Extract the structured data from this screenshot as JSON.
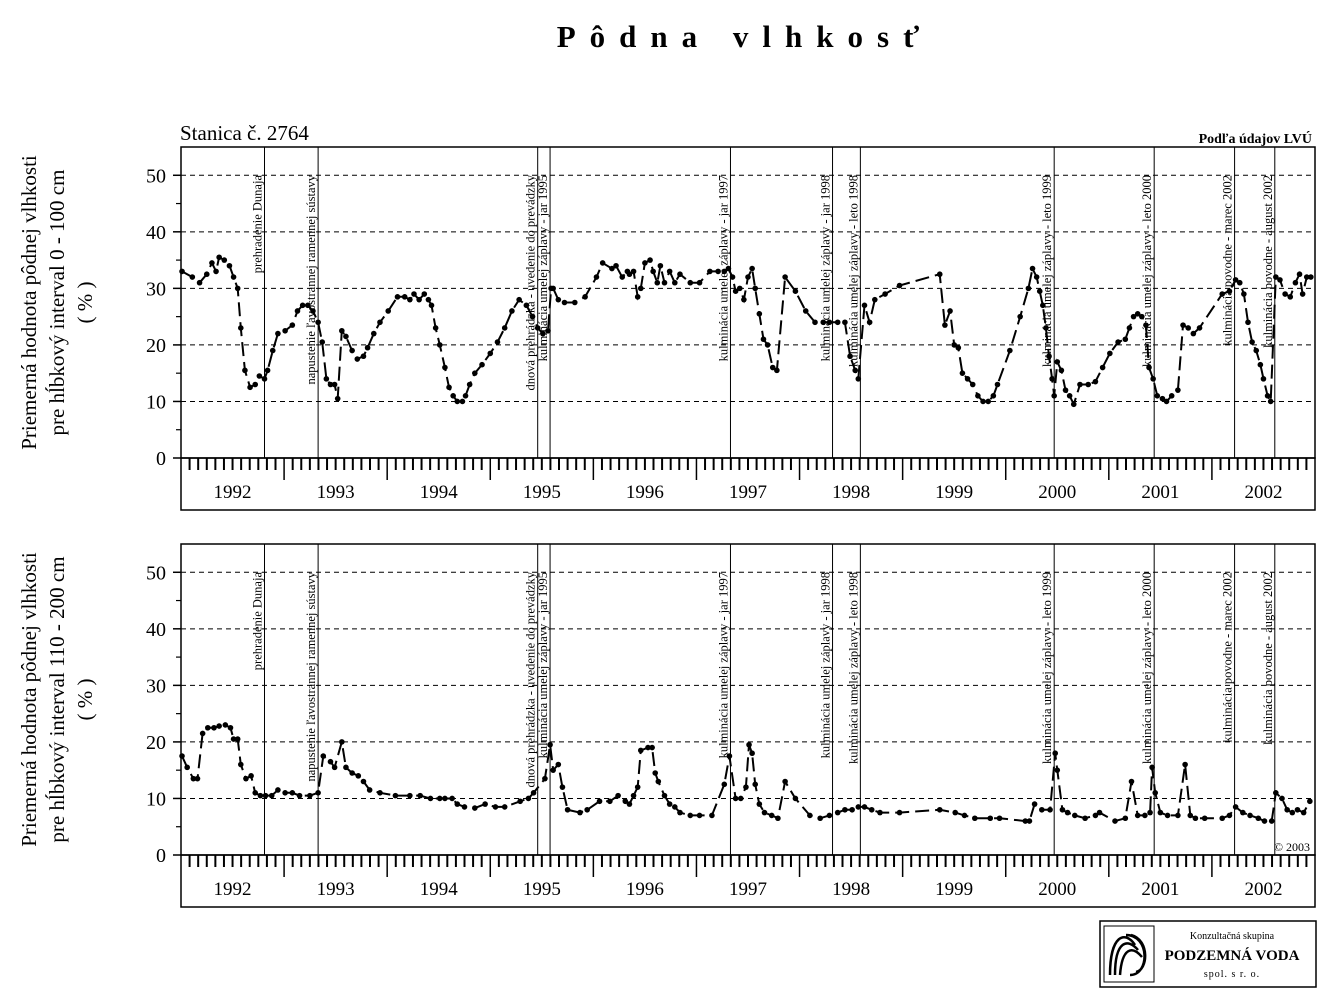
{
  "title": "Pôdna vlhkosť",
  "station": "Stanica č. 2764",
  "source": "Podľa údajov LVÚ",
  "copyright": "© 2003",
  "logo": {
    "line1": "Konzultačná skupina",
    "line2": "PODZEMNÁ VODA",
    "line3": "spol. s r. o."
  },
  "chart_data": [
    {
      "type": "line",
      "y_label": [
        "Priemerná hodnota pôdnej vlhkosti",
        "pre hĺbkový interval 0 - 100 cm",
        "( % )"
      ],
      "color": "#000000",
      "xlim": [
        1992,
        2003
      ],
      "ylim": [
        0,
        55
      ],
      "yticks": [
        0,
        10,
        20,
        30,
        40,
        50
      ],
      "yminor_ticks": [
        5,
        15,
        25,
        35,
        45
      ],
      "grid": true,
      "xticks": [
        {
          "value": 1992.5,
          "label": "1992"
        },
        {
          "value": 1993.5,
          "label": "1993"
        },
        {
          "value": 1994.5,
          "label": "1994"
        },
        {
          "value": 1995.5,
          "label": "1995"
        },
        {
          "value": 1996.5,
          "label": "1996"
        },
        {
          "value": 1997.5,
          "label": "1997"
        },
        {
          "value": 1998.5,
          "label": "1998"
        },
        {
          "value": 1999.5,
          "label": "1999"
        },
        {
          "value": 2000.5,
          "label": "2000"
        },
        {
          "value": 2001.5,
          "label": "2001"
        },
        {
          "value": 2002.5,
          "label": "2002"
        }
      ],
      "annotations": [
        {
          "x": 1992.81,
          "text": "prehradenie Dunaja"
        },
        {
          "x": 1993.33,
          "text": "napustenie ľavostrannej ramennej sústavy"
        },
        {
          "x": 1995.46,
          "text": "dnová prehrádzka - uvedenie do prevádzky"
        },
        {
          "x": 1995.58,
          "text": "kulminácia umelej záplavy - jar 1995"
        },
        {
          "x": 1997.33,
          "text": "kulminácia umelej záplavy - jar 1997"
        },
        {
          "x": 1998.32,
          "text": "kulminácia umelej záplavy - jar 1998"
        },
        {
          "x": 1998.59,
          "text": "kulminácia umelej záplavy - leto 1998"
        },
        {
          "x": 2000.47,
          "text": "kulminácia umelej záplavy - leto 1999"
        },
        {
          "x": 2001.44,
          "text": "kulminácia umelej záplavy - leto 2000"
        },
        {
          "x": 2002.22,
          "text": "kulminácia povodne - marec 2002"
        },
        {
          "x": 2002.61,
          "text": "kulminácia povodne - august 2002"
        }
      ],
      "x": [
        1992.01,
        1992.11,
        1992.18,
        1992.25,
        1992.3,
        1992.34,
        1992.37,
        1992.42,
        1992.47,
        1992.51,
        1992.55,
        1992.58,
        1992.62,
        1992.67,
        1992.72,
        1992.76,
        1992.81,
        1992.84,
        1992.89,
        1992.94,
        1993.01,
        1993.08,
        1993.13,
        1993.18,
        1993.23,
        1993.28,
        1993.33,
        1993.37,
        1993.41,
        1993.45,
        1993.49,
        1993.52,
        1993.56,
        1993.6,
        1993.66,
        1993.71,
        1993.77,
        1993.81,
        1993.87,
        1993.93,
        1994.01,
        1994.1,
        1994.17,
        1994.22,
        1994.26,
        1994.31,
        1994.36,
        1994.4,
        1994.43,
        1994.47,
        1994.51,
        1994.56,
        1994.6,
        1994.64,
        1994.68,
        1994.73,
        1994.76,
        1994.8,
        1994.85,
        1994.92,
        1995.0,
        1995.07,
        1995.14,
        1995.21,
        1995.28,
        1995.35,
        1995.41,
        1995.46,
        1995.51,
        1995.56,
        1995.59,
        1995.61,
        1995.66,
        1995.72,
        1995.82,
        1995.92,
        1996.03,
        1996.09,
        1996.18,
        1996.22,
        1996.28,
        1996.33,
        1996.35,
        1996.39,
        1996.43,
        1996.46,
        1996.5,
        1996.55,
        1996.58,
        1996.62,
        1996.65,
        1996.69,
        1996.74,
        1996.79,
        1996.84,
        1996.94,
        1997.03,
        1997.13,
        1997.21,
        1997.27,
        1997.31,
        1997.35,
        1997.38,
        1997.42,
        1997.46,
        1997.5,
        1997.54,
        1997.57,
        1997.61,
        1997.65,
        1997.69,
        1997.74,
        1997.78,
        1997.86,
        1997.96,
        1998.06,
        1998.15,
        1998.23,
        1998.29,
        1998.37,
        1998.44,
        1998.49,
        1998.54,
        1998.57,
        1998.63,
        1998.68,
        1998.73,
        1998.83,
        1998.97,
        1999.36,
        1999.41,
        1999.46,
        1999.5,
        1999.54,
        1999.58,
        1999.63,
        1999.68,
        1999.73,
        1999.78,
        1999.83,
        1999.88,
        1999.92,
        2000.04,
        2000.14,
        2000.22,
        2000.26,
        2000.3,
        2000.33,
        2000.36,
        2000.39,
        2000.42,
        2000.45,
        2000.47,
        2000.5,
        2000.54,
        2000.58,
        2000.62,
        2000.66,
        2000.72,
        2000.8,
        2000.87,
        2000.94,
        2001.01,
        2001.09,
        2001.16,
        2001.2,
        2001.24,
        2001.28,
        2001.32,
        2001.36,
        2001.39,
        2001.43,
        2001.47,
        2001.52,
        2001.56,
        2001.61,
        2001.67,
        2001.72,
        2001.77,
        2001.82,
        2001.88,
        2002.1,
        2002.17,
        2002.23,
        2002.27,
        2002.31,
        2002.35,
        2002.39,
        2002.43,
        2002.47,
        2002.5,
        2002.54,
        2002.57,
        2002.62,
        2002.66,
        2002.71,
        2002.76,
        2002.81,
        2002.85,
        2002.88,
        2002.92,
        2002.96
      ],
      "values": [
        33,
        32,
        31,
        32.5,
        34.5,
        33,
        35.5,
        35,
        34,
        32,
        30,
        23,
        15.5,
        12.5,
        13,
        14.5,
        14,
        15.5,
        19,
        22,
        22.5,
        23.5,
        26,
        27,
        27,
        26,
        24,
        20.5,
        14,
        13,
        13,
        10.5,
        22.5,
        21.5,
        19,
        17.5,
        18,
        19.5,
        22,
        24,
        26,
        28.5,
        28.5,
        28,
        29,
        28,
        29,
        28,
        27,
        23,
        20,
        16,
        12.5,
        11,
        10,
        10,
        11,
        13,
        15,
        16.5,
        18.5,
        20.5,
        23,
        26,
        28,
        27,
        25,
        23,
        22,
        22.5,
        30,
        30,
        28,
        27.5,
        27.5,
        28.5,
        32,
        34.5,
        33.5,
        34,
        32,
        33,
        32.5,
        33,
        28.5,
        30,
        34.5,
        35,
        33,
        31,
        34,
        31,
        33,
        31,
        32.5,
        31,
        31,
        33,
        33,
        33,
        33.5,
        32,
        29.5,
        30,
        28,
        32,
        33.5,
        30,
        25.5,
        21,
        20,
        16,
        15.5,
        32,
        29.5,
        26,
        24,
        24,
        24,
        24,
        24,
        18,
        15.5,
        14,
        27,
        24,
        28,
        29,
        30.5,
        32.5,
        23.5,
        26,
        20,
        19.5,
        15,
        14,
        13,
        11,
        10,
        10,
        11,
        13,
        19,
        25,
        30,
        33.5,
        32,
        29.5,
        27,
        23,
        18,
        14,
        11,
        17,
        15.5,
        12,
        11,
        9.5,
        13,
        13,
        13.5,
        16,
        18.5,
        20.5,
        21,
        23,
        25,
        25.5,
        25,
        23.5,
        16,
        14,
        11,
        10.5,
        10,
        11,
        12,
        23.5,
        23,
        22,
        23,
        29,
        29.5,
        31.5,
        31,
        29,
        24,
        20.5,
        19,
        16.5,
        14,
        11,
        10,
        32,
        31.5,
        29,
        28.5,
        31,
        32.5,
        29,
        32,
        32
      ]
    },
    {
      "type": "line",
      "y_label": [
        "Priemerná hodnota pôdnej vlhkosti",
        "pre hĺbkový interval 110 - 200 cm",
        "( % )"
      ],
      "color": "#000000",
      "xlim": [
        1992,
        2003
      ],
      "ylim": [
        0,
        55
      ],
      "yticks": [
        0,
        10,
        20,
        30,
        40,
        50
      ],
      "yminor_ticks": [
        5,
        15,
        25,
        35,
        45
      ],
      "grid": true,
      "xticks": [
        {
          "value": 1992.5,
          "label": "1992"
        },
        {
          "value": 1993.5,
          "label": "1993"
        },
        {
          "value": 1994.5,
          "label": "1994"
        },
        {
          "value": 1995.5,
          "label": "1995"
        },
        {
          "value": 1996.5,
          "label": "1996"
        },
        {
          "value": 1997.5,
          "label": "1997"
        },
        {
          "value": 1998.5,
          "label": "1998"
        },
        {
          "value": 1999.5,
          "label": "1999"
        },
        {
          "value": 2000.5,
          "label": "2000"
        },
        {
          "value": 2001.5,
          "label": "2001"
        },
        {
          "value": 2002.5,
          "label": "2002"
        }
      ],
      "annotations": [
        {
          "x": 1992.81,
          "text": "prehradenie Dunaja"
        },
        {
          "x": 1993.33,
          "text": "napustenie ľavostrannej ramennej sústavy"
        },
        {
          "x": 1995.46,
          "text": "dnová prehrádzka - uvedenie do prevádzky"
        },
        {
          "x": 1995.58,
          "text": "kulminácia umelej záplavy - jar 1995"
        },
        {
          "x": 1997.33,
          "text": "kulminácia umelej záplavy - jar 1997"
        },
        {
          "x": 1998.32,
          "text": "kulminácia umelej záplavy - jar 1998"
        },
        {
          "x": 1998.59,
          "text": "kulminácia umelej záplavy - leto 1998"
        },
        {
          "x": 2000.47,
          "text": "kulminácia umelej záplavy - leto 1999"
        },
        {
          "x": 2001.44,
          "text": "kulminácia umelej záplavy - leto 2000"
        },
        {
          "x": 2002.22,
          "text": "kulminácia povodne - marec 2002"
        },
        {
          "x": 2002.61,
          "text": "kulminácia povodne - august 2002"
        }
      ],
      "x": [
        1992.01,
        1992.06,
        1992.12,
        1992.16,
        1992.21,
        1992.26,
        1992.32,
        1992.37,
        1992.43,
        1992.48,
        1992.51,
        1992.55,
        1992.58,
        1992.63,
        1992.68,
        1992.72,
        1992.77,
        1992.82,
        1992.88,
        1992.94,
        1993.01,
        1993.08,
        1993.15,
        1993.25,
        1993.33,
        1993.38,
        1993.45,
        1993.49,
        1993.56,
        1993.6,
        1993.66,
        1993.72,
        1993.77,
        1993.83,
        1993.93,
        1994.08,
        1994.22,
        1994.32,
        1994.42,
        1994.51,
        1994.56,
        1994.63,
        1994.68,
        1994.75,
        1994.85,
        1994.95,
        1995.05,
        1995.14,
        1995.29,
        1995.37,
        1995.42,
        1995.53,
        1995.58,
        1995.61,
        1995.66,
        1995.7,
        1995.75,
        1995.87,
        1995.94,
        1996.06,
        1996.16,
        1996.24,
        1996.31,
        1996.35,
        1996.39,
        1996.43,
        1996.46,
        1996.53,
        1996.57,
        1996.6,
        1996.63,
        1996.69,
        1996.74,
        1996.79,
        1996.84,
        1996.94,
        1997.03,
        1997.15,
        1997.27,
        1997.32,
        1997.38,
        1997.43,
        1997.48,
        1997.51,
        1997.54,
        1997.57,
        1997.61,
        1997.66,
        1997.73,
        1997.79,
        1997.86,
        1997.96,
        1998.1,
        1998.2,
        1998.29,
        1998.37,
        1998.44,
        1998.51,
        1998.57,
        1998.63,
        1998.7,
        1998.78,
        1998.97,
        1999.36,
        1999.51,
        1999.6,
        1999.7,
        1999.85,
        1999.94,
        2000.19,
        2000.23,
        2000.28,
        2000.35,
        2000.43,
        2000.48,
        2000.5,
        2000.55,
        2000.6,
        2000.67,
        2000.77,
        2000.87,
        2000.91,
        2001.06,
        2001.16,
        2001.22,
        2001.28,
        2001.35,
        2001.4,
        2001.42,
        2001.45,
        2001.5,
        2001.57,
        2001.67,
        2001.74,
        2001.79,
        2001.84,
        2001.93,
        2002.1,
        2002.17,
        2002.23,
        2002.3,
        2002.37,
        2002.45,
        2002.51,
        2002.58,
        2002.62,
        2002.68,
        2002.73,
        2002.78,
        2002.83,
        2002.89,
        2002.95
      ],
      "values": [
        17.5,
        15.5,
        13.5,
        13.5,
        21.5,
        22.5,
        22.5,
        22.8,
        23,
        22.5,
        20.5,
        20.5,
        16,
        13.5,
        14,
        11,
        10.5,
        10.5,
        10.5,
        11.5,
        11,
        11,
        10.5,
        10.5,
        11,
        17.5,
        16.5,
        15.5,
        20,
        15.5,
        14.5,
        14,
        13,
        11.5,
        11,
        10.5,
        10.5,
        10.5,
        10,
        10,
        10,
        10,
        9,
        8.5,
        8.3,
        9,
        8.5,
        8.5,
        9.5,
        10,
        11,
        13.5,
        19.5,
        15,
        16,
        12,
        8,
        7.5,
        8,
        9.5,
        9.5,
        10.5,
        9.5,
        9,
        10.5,
        12,
        18.5,
        19,
        19,
        14.5,
        13,
        10.5,
        9,
        8.5,
        7.5,
        7,
        7,
        7,
        12.5,
        17.5,
        10,
        10,
        12,
        19.5,
        18,
        12.5,
        9,
        7.5,
        7,
        6.5,
        13,
        10,
        7,
        6.5,
        7,
        7.5,
        8,
        8,
        8.5,
        8.5,
        8,
        7.5,
        7.5,
        8,
        7.5,
        7,
        6.5,
        6.5,
        6.5,
        6,
        6,
        9,
        8,
        8,
        18,
        15,
        8,
        7.5,
        7,
        6.5,
        7,
        7.5,
        6,
        6.5,
        13,
        7,
        7,
        7.5,
        15.5,
        11,
        7.5,
        7,
        7,
        16,
        7,
        6.5,
        6.5,
        6.5,
        7,
        8.5,
        7.5,
        7,
        6.5,
        6,
        6,
        11,
        10,
        8,
        7.5,
        8,
        7.5,
        9.5
      ]
    }
  ]
}
